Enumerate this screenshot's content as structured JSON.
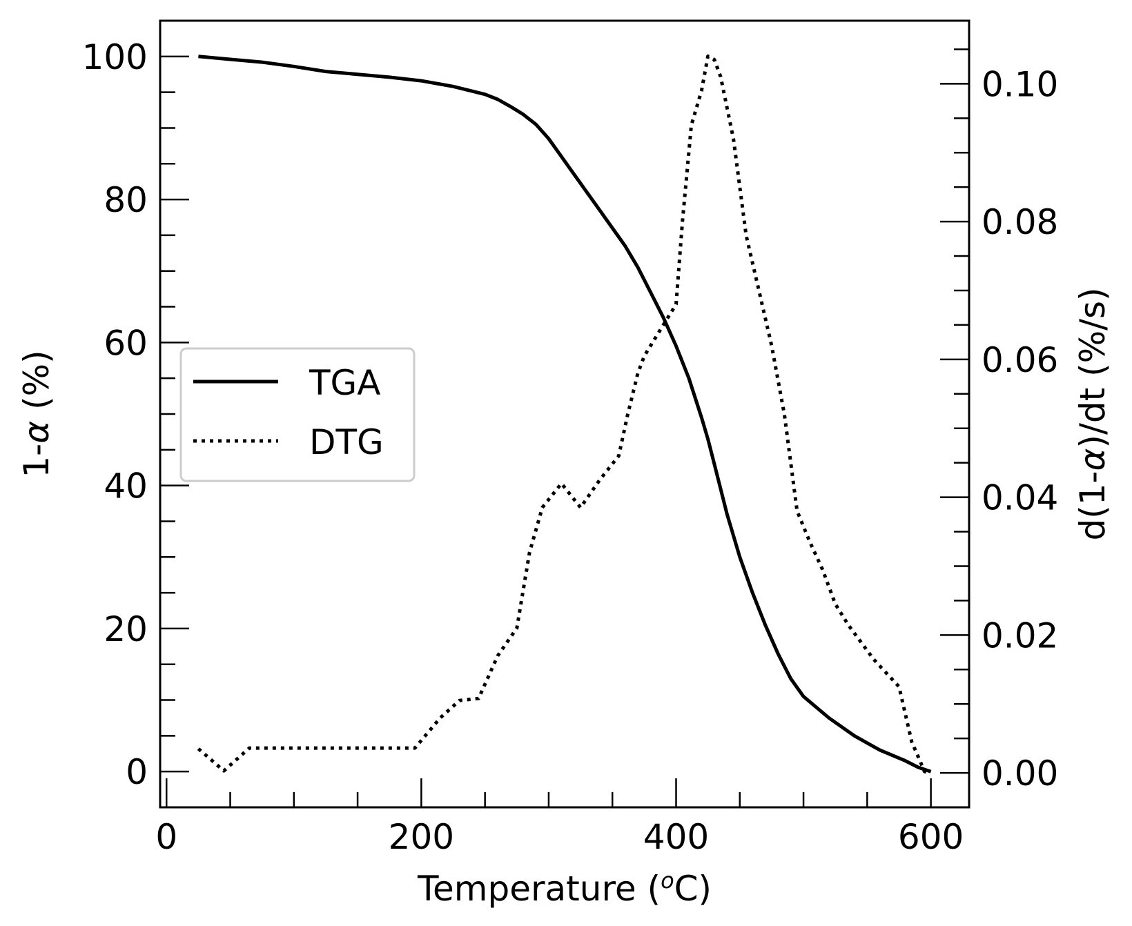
{
  "chart_data": {
    "type": "line",
    "xlabel": "Temperature (oC)",
    "ylabel_left": "1-α (%)",
    "ylabel_right": "d(1-α)/dt (%/s)",
    "xlim": [
      -5,
      630
    ],
    "ylim_left": [
      -5,
      105
    ],
    "ylim_right": [
      -0.005,
      0.10915
    ],
    "x_ticks": [
      0,
      200,
      400,
      600
    ],
    "x_tick_labels": [
      "0",
      "200",
      "400",
      "600"
    ],
    "y_left_ticks": [
      0,
      20,
      40,
      60,
      80,
      100
    ],
    "y_left_tick_labels": [
      "0",
      "20",
      "40",
      "60",
      "80",
      "100"
    ],
    "y_right_ticks": [
      0.0,
      0.02,
      0.04,
      0.06,
      0.08,
      0.1
    ],
    "y_right_tick_labels": [
      "0.00",
      "0.02",
      "0.04",
      "0.06",
      "0.08",
      "0.10"
    ],
    "grid": false,
    "legend_position": "center-left",
    "series": [
      {
        "name": "TGA",
        "axis": "left",
        "style": "solid",
        "color": "#000000",
        "x": [
          25,
          50,
          75,
          100,
          125,
          150,
          175,
          200,
          225,
          250,
          260,
          270,
          280,
          290,
          300,
          310,
          320,
          330,
          340,
          350,
          360,
          370,
          380,
          390,
          400,
          410,
          420,
          425,
          430,
          440,
          450,
          460,
          470,
          480,
          490,
          500,
          520,
          540,
          560,
          580,
          590,
          600
        ],
        "y": [
          100,
          99.6,
          99.2,
          98.6,
          97.9,
          97.5,
          97.1,
          96.6,
          95.8,
          94.7,
          94.0,
          93.0,
          91.9,
          90.5,
          88.5,
          86.0,
          83.5,
          81.0,
          78.5,
          76.0,
          73.5,
          70.5,
          67.0,
          63.5,
          59.5,
          55.0,
          49.5,
          46.5,
          43.0,
          36.0,
          30.0,
          25.0,
          20.5,
          16.5,
          13.0,
          10.5,
          7.5,
          5.0,
          3.0,
          1.5,
          0.6,
          0
        ]
      },
      {
        "name": "DTG",
        "axis": "right",
        "style": "dotted",
        "color": "#000000",
        "x": [
          25,
          45,
          65,
          90,
          120,
          160,
          195,
          215,
          230,
          245,
          260,
          275,
          285,
          295,
          310,
          325,
          340,
          355,
          362,
          370,
          375,
          380,
          390,
          400,
          405,
          412,
          420,
          425,
          430,
          435,
          445,
          455,
          465,
          475,
          485,
          495,
          505,
          515,
          525,
          535,
          545,
          555,
          565,
          575,
          585,
          595,
          600
        ],
        "y": [
          0.0035,
          0.0003,
          0.0036,
          0.0036,
          0.0036,
          0.0036,
          0.0036,
          0.008,
          0.0105,
          0.0108,
          0.017,
          0.021,
          0.032,
          0.0385,
          0.042,
          0.0385,
          0.0425,
          0.046,
          0.052,
          0.058,
          0.0605,
          0.062,
          0.065,
          0.068,
          0.08,
          0.094,
          0.099,
          0.104,
          0.1035,
          0.101,
          0.092,
          0.078,
          0.07,
          0.062,
          0.052,
          0.038,
          0.0335,
          0.0295,
          0.0245,
          0.0215,
          0.019,
          0.0165,
          0.0145,
          0.0125,
          0.0045,
          0.0002,
          0.0
        ]
      }
    ]
  }
}
